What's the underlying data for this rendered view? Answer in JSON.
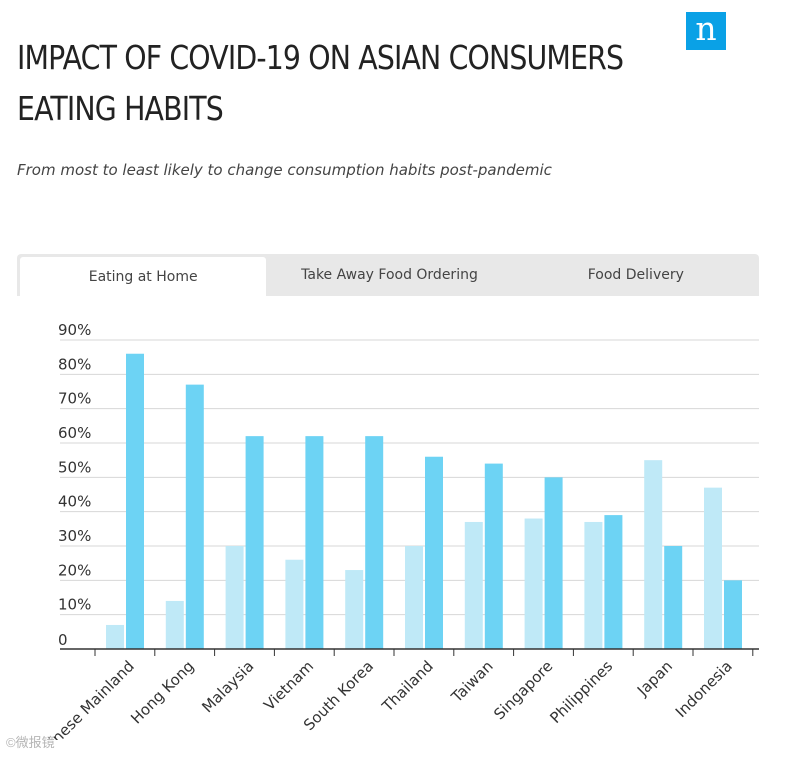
{
  "header": {
    "title": "IMPACT OF COVID-19 ON ASIAN CONSUMERS EATING HABITS",
    "subtitle": "From most to least likely to change consumption habits post-pandemic",
    "logo_letter": "n"
  },
  "tabs": [
    {
      "label": "Eating at Home",
      "active": true
    },
    {
      "label": "Take Away Food Ordering",
      "active": false
    },
    {
      "label": "Food Delivery",
      "active": false
    }
  ],
  "watermark": "©微报镜",
  "colors": {
    "accent": "#0aa1e6",
    "series_light": "#bfe9f7",
    "series_dark": "#6dd3f4",
    "grid": "#d7d7d7",
    "axis": "#333333"
  },
  "chart_data": {
    "type": "bar",
    "categories": [
      "Chinese Mainland",
      "Hong Kong",
      "Malaysia",
      "Vietnam",
      "South Korea",
      "Thailand",
      "Taiwan",
      "Singapore",
      "Philippines",
      "Japan",
      "Indonesia"
    ],
    "series": [
      {
        "values": [
          7,
          14,
          30,
          26,
          23,
          30,
          37,
          38,
          37,
          55,
          47
        ]
      },
      {
        "values": [
          86,
          77,
          62,
          62,
          62,
          56,
          54,
          50,
          39,
          30,
          20
        ]
      }
    ],
    "y_ticks": [
      "0",
      "10%",
      "20%",
      "30%",
      "40%",
      "50%",
      "60%",
      "70%",
      "80%",
      "90%"
    ],
    "ylim": [
      0,
      90
    ],
    "grid": true
  }
}
